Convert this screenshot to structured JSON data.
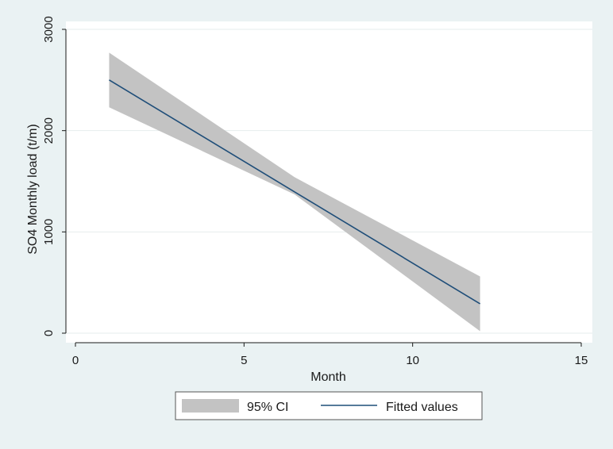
{
  "chart_data": {
    "type": "line",
    "xlabel": "Month",
    "ylabel": "SO4 Monthly load (t/m)",
    "xlim": [
      0,
      15
    ],
    "ylim": [
      0,
      3000
    ],
    "xticks": [
      0,
      5,
      10,
      15
    ],
    "yticks": [
      0,
      1000,
      2000,
      3000
    ],
    "grid": "horizontal",
    "legend": "bottom",
    "colors": {
      "background": "#eaf2f3",
      "plot_area": "#ffffff",
      "gridline": "#e6eded",
      "ci_band": "#c3c3c3",
      "fitted_line": "#1f4e79"
    },
    "series": [
      {
        "name": "Fitted values",
        "kind": "line",
        "x": [
          1,
          12
        ],
        "y": [
          2500,
          290
        ]
      },
      {
        "name": "95% CI",
        "kind": "band",
        "x": [
          1,
          6.5,
          12
        ],
        "lower": [
          2230,
          1370,
          20
        ],
        "upper": [
          2770,
          1540,
          560
        ]
      }
    ]
  }
}
